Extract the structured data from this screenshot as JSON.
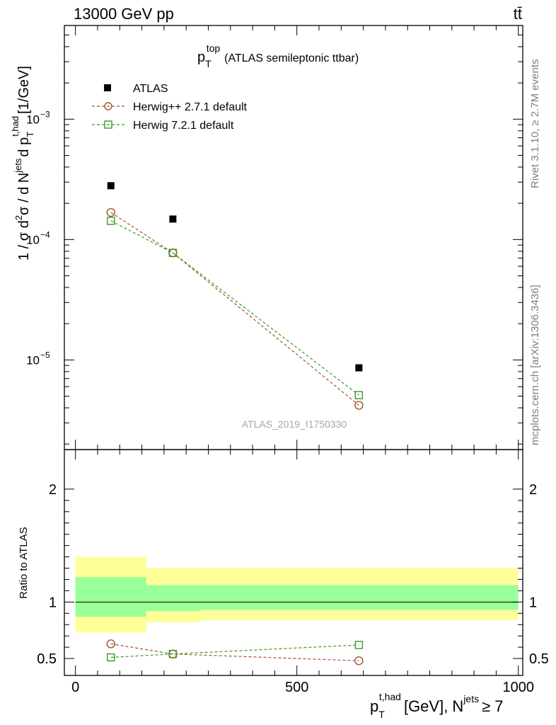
{
  "header": {
    "left": "13000 GeV pp",
    "right": "tt̄"
  },
  "side_labels": {
    "top": "Rivet 3.1.10, ≥ 2.7M events",
    "bottom": "mcplots.cern.ch [arXiv:1306.3436]"
  },
  "watermark": "ATLAS_2019_I1750330",
  "colors": {
    "data": "#000000",
    "herwigpp": "#a0522d",
    "herwig7": "#3b9a1f",
    "band_outer": "#ffff99",
    "band_inner": "#99ff99"
  },
  "chart_data": [
    {
      "type": "scatter",
      "panel": "main",
      "title_main": "p",
      "title_sub": "T",
      "title_sup": "top",
      "title_rest": "(ATLAS semileptonic ttbar)",
      "ylabel_main": "1 / σ d",
      "ylabel_sup1": "2",
      "ylabel_mid": "σ / d N",
      "ylabel_sup2": "jets",
      "ylabel_mid2": "d p",
      "ylabel_sub3": "T",
      "ylabel_sup3": "t,had",
      "ylabel_end": "[1/GeV]",
      "y_scale": "log",
      "ylim": [
        1.8e-06,
        0.006
      ],
      "xlim": [
        -25,
        1010
      ],
      "y_tick_labels": [
        "10",
        "10",
        "10"
      ],
      "y_tick_exponents": [
        "−5",
        "−4",
        "−3"
      ],
      "legend_position": "top-left",
      "series": [
        {
          "name": "ATLAS",
          "x": [
            80,
            220,
            640
          ],
          "y": [
            0.00028,
            0.000148,
            8.6e-06
          ]
        },
        {
          "name": "Herwig++ 2.7.1 default",
          "x": [
            80,
            220,
            640
          ],
          "y": [
            0.000168,
            7.75e-05,
            4.2e-06
          ]
        },
        {
          "name": "Herwig 7.2.1 default",
          "x": [
            80,
            220,
            640
          ],
          "y": [
            0.000143,
            7.75e-05,
            5.1e-06
          ]
        }
      ]
    },
    {
      "type": "line",
      "panel": "ratio",
      "ylabel": "Ratio to ATLAS",
      "ylim": [
        0.35,
        2.35
      ],
      "xlim": [
        -25,
        1010
      ],
      "y_tick_labels": [
        "0.5",
        "1",
        "2"
      ],
      "x_tick_labels": [
        "0",
        "500",
        "1000"
      ],
      "xlabel_main": "p",
      "xlabel_sub": "T",
      "xlabel_sup": "t,had",
      "xlabel_mid": "[GeV], N",
      "xlabel_sup2": "jets",
      "xlabel_end": "≥ 7",
      "bins": [
        [
          0,
          160
        ],
        [
          160,
          280
        ],
        [
          280,
          1000
        ]
      ],
      "band_outer": [
        [
          0.73,
          1.4
        ],
        [
          0.82,
          1.3
        ],
        [
          0.84,
          1.3
        ]
      ],
      "band_inner": [
        [
          0.87,
          1.22
        ],
        [
          0.92,
          1.15
        ],
        [
          0.93,
          1.15
        ]
      ],
      "series": [
        {
          "name": "Herwig++ 2.7.1 default",
          "x": [
            80,
            220,
            640
          ],
          "y": [
            0.63,
            0.54,
            0.48
          ]
        },
        {
          "name": "Herwig 7.2.1 default",
          "x": [
            80,
            220,
            640
          ],
          "y": [
            0.51,
            0.54,
            0.62
          ]
        }
      ]
    }
  ]
}
